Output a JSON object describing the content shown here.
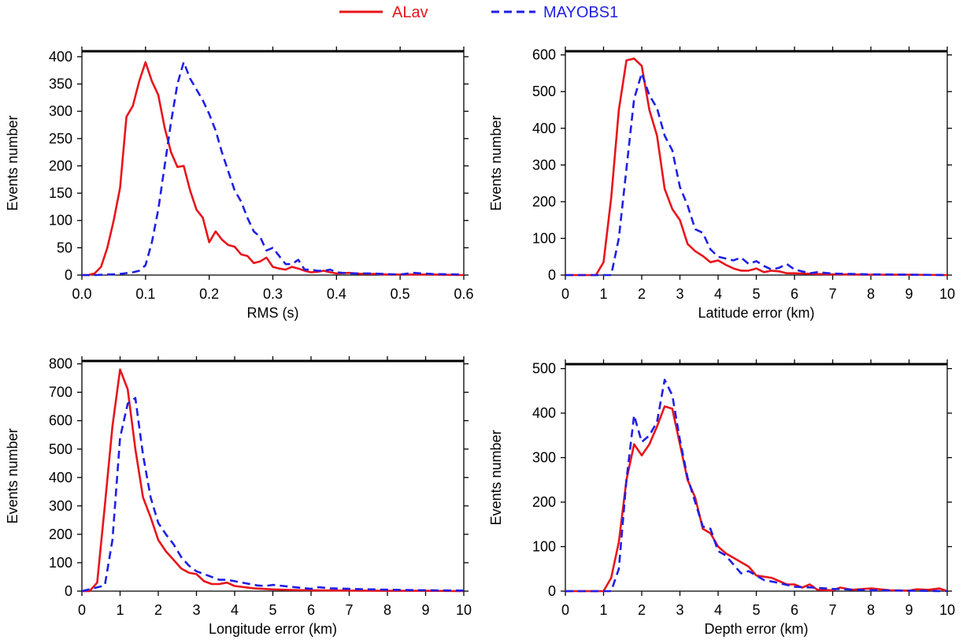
{
  "legend": {
    "position": "top-center",
    "entries": [
      {
        "label": "ALav",
        "color": "#e8141b",
        "dash": "solid"
      },
      {
        "label": "MAYOBS1",
        "color": "#1f1fe6",
        "dash": "dashed"
      }
    ]
  },
  "chart_data": [
    {
      "type": "line",
      "xlabel": "RMS (s)",
      "ylabel": "Events number",
      "xlim": [
        0,
        0.6
      ],
      "ylim": [
        0,
        410
      ],
      "xticks": [
        0,
        0.1,
        0.2,
        0.3,
        0.4,
        0.5,
        0.6
      ],
      "xtick_labels": [
        "0.0",
        "0.1",
        "0.2",
        "0.3",
        "0.4",
        "0.5",
        "0.6"
      ],
      "yticks": [
        0,
        50,
        100,
        150,
        200,
        250,
        300,
        350,
        400
      ],
      "ytick_labels": [
        "0",
        "50",
        "100",
        "150",
        "200",
        "250",
        "300",
        "350",
        "400"
      ],
      "grid": false,
      "series": [
        {
          "name": "ALav",
          "x": [
            0,
            0.01,
            0.02,
            0.03,
            0.04,
            0.05,
            0.06,
            0.07,
            0.08,
            0.09,
            0.1,
            0.11,
            0.12,
            0.13,
            0.14,
            0.15,
            0.16,
            0.17,
            0.18,
            0.19,
            0.2,
            0.21,
            0.22,
            0.23,
            0.24,
            0.25,
            0.26,
            0.27,
            0.28,
            0.29,
            0.3,
            0.31,
            0.32,
            0.33,
            0.34,
            0.35,
            0.36,
            0.37,
            0.38,
            0.39,
            0.4,
            0.42,
            0.44,
            0.46,
            0.48,
            0.5,
            0.55,
            0.6
          ],
          "y": [
            0,
            0,
            3,
            15,
            50,
            100,
            160,
            290,
            310,
            355,
            390,
            355,
            330,
            270,
            225,
            198,
            200,
            155,
            120,
            105,
            60,
            80,
            65,
            55,
            52,
            38,
            35,
            22,
            25,
            32,
            15,
            12,
            10,
            15,
            12,
            8,
            5,
            6,
            8,
            5,
            3,
            4,
            2,
            2,
            1,
            1,
            1,
            0
          ]
        },
        {
          "name": "MAYOBS1",
          "x": [
            0,
            0.02,
            0.04,
            0.06,
            0.08,
            0.09,
            0.1,
            0.11,
            0.12,
            0.13,
            0.14,
            0.15,
            0.16,
            0.17,
            0.18,
            0.19,
            0.2,
            0.21,
            0.22,
            0.23,
            0.24,
            0.25,
            0.26,
            0.27,
            0.28,
            0.29,
            0.3,
            0.31,
            0.32,
            0.33,
            0.34,
            0.35,
            0.36,
            0.37,
            0.38,
            0.39,
            0.4,
            0.42,
            0.45,
            0.5,
            0.52,
            0.55,
            0.6
          ],
          "y": [
            0,
            0,
            1,
            2,
            5,
            8,
            18,
            60,
            120,
            200,
            280,
            350,
            390,
            360,
            340,
            320,
            295,
            265,
            225,
            190,
            155,
            135,
            105,
            80,
            70,
            45,
            50,
            35,
            20,
            20,
            28,
            10,
            10,
            8,
            8,
            10,
            5,
            3,
            3,
            1,
            4,
            2,
            1
          ]
        }
      ]
    },
    {
      "type": "line",
      "xlabel": "Latitude error (km)",
      "ylabel": "Events number",
      "xlim": [
        0,
        10
      ],
      "ylim": [
        0,
        610
      ],
      "xticks": [
        0,
        1,
        2,
        3,
        4,
        5,
        6,
        7,
        8,
        9,
        10
      ],
      "xtick_labels": [
        "0",
        "1",
        "2",
        "3",
        "4",
        "5",
        "6",
        "7",
        "8",
        "9",
        "10"
      ],
      "yticks": [
        0,
        100,
        200,
        300,
        400,
        500,
        600
      ],
      "ytick_labels": [
        "0",
        "100",
        "200",
        "300",
        "400",
        "500",
        "600"
      ],
      "grid": false,
      "series": [
        {
          "name": "ALav",
          "x": [
            0,
            0.8,
            1.0,
            1.2,
            1.4,
            1.6,
            1.8,
            2.0,
            2.2,
            2.4,
            2.6,
            2.8,
            3.0,
            3.2,
            3.4,
            3.6,
            3.8,
            4.0,
            4.2,
            4.4,
            4.6,
            4.8,
            5.0,
            5.2,
            5.4,
            5.6,
            5.8,
            6.0,
            6.5,
            7.0,
            8.0,
            9.0,
            10.0
          ],
          "y": [
            0,
            0,
            35,
            210,
            450,
            585,
            590,
            570,
            450,
            380,
            235,
            180,
            150,
            85,
            65,
            52,
            35,
            40,
            28,
            18,
            12,
            12,
            18,
            8,
            12,
            10,
            5,
            5,
            3,
            2,
            1,
            1,
            0
          ]
        },
        {
          "name": "MAYOBS1",
          "x": [
            0,
            1.2,
            1.4,
            1.6,
            1.8,
            2.0,
            2.2,
            2.4,
            2.6,
            2.8,
            3.0,
            3.2,
            3.4,
            3.6,
            3.8,
            4.0,
            4.2,
            4.4,
            4.6,
            4.8,
            5.0,
            5.2,
            5.4,
            5.6,
            5.8,
            6.0,
            6.2,
            6.4,
            6.6,
            7.0,
            7.5,
            8.0,
            9.0,
            10.0
          ],
          "y": [
            0,
            0,
            100,
            290,
            480,
            550,
            490,
            455,
            380,
            340,
            240,
            190,
            125,
            115,
            70,
            50,
            45,
            40,
            48,
            30,
            38,
            25,
            15,
            20,
            30,
            15,
            10,
            5,
            8,
            4,
            3,
            2,
            1,
            0
          ]
        }
      ]
    },
    {
      "type": "line",
      "xlabel": "Longitude error (km)",
      "ylabel": "Events number",
      "xlim": [
        0,
        10
      ],
      "ylim": [
        0,
        810
      ],
      "xticks": [
        0,
        1,
        2,
        3,
        4,
        5,
        6,
        7,
        8,
        9,
        10
      ],
      "xtick_labels": [
        "0",
        "1",
        "2",
        "3",
        "4",
        "5",
        "6",
        "7",
        "8",
        "9",
        "10"
      ],
      "yticks": [
        0,
        100,
        200,
        300,
        400,
        500,
        600,
        700,
        800
      ],
      "ytick_labels": [
        "0",
        "100",
        "200",
        "300",
        "400",
        "500",
        "600",
        "700",
        "800"
      ],
      "grid": false,
      "series": [
        {
          "name": "ALav",
          "x": [
            0,
            0.2,
            0.4,
            0.6,
            0.8,
            1.0,
            1.2,
            1.4,
            1.6,
            1.8,
            2.0,
            2.2,
            2.4,
            2.6,
            2.8,
            3.0,
            3.2,
            3.4,
            3.6,
            3.8,
            4.0,
            4.5,
            5.0,
            5.5,
            6.0,
            7.0,
            8.0,
            9.0,
            10.0
          ],
          "y": [
            0,
            0,
            30,
            300,
            580,
            780,
            710,
            500,
            330,
            260,
            180,
            140,
            110,
            80,
            65,
            60,
            35,
            25,
            25,
            30,
            18,
            10,
            6,
            4,
            3,
            2,
            1,
            1,
            0
          ]
        },
        {
          "name": "MAYOBS1",
          "x": [
            0,
            0.6,
            0.8,
            1.0,
            1.2,
            1.4,
            1.6,
            1.8,
            2.0,
            2.2,
            2.4,
            2.6,
            2.8,
            3.0,
            3.2,
            3.4,
            3.6,
            3.8,
            4.0,
            4.2,
            4.4,
            4.6,
            4.8,
            5.0,
            5.5,
            6.0,
            6.2,
            6.5,
            7.0,
            8.0,
            9.0,
            10.0
          ],
          "y": [
            0,
            20,
            180,
            540,
            660,
            680,
            480,
            330,
            240,
            200,
            165,
            120,
            90,
            70,
            60,
            50,
            40,
            40,
            35,
            30,
            25,
            20,
            18,
            22,
            15,
            8,
            14,
            10,
            8,
            5,
            3,
            2
          ]
        }
      ]
    },
    {
      "type": "line",
      "xlabel": "Depth error (km)",
      "ylabel": "Events number",
      "xlim": [
        0,
        10
      ],
      "ylim": [
        0,
        510
      ],
      "xticks": [
        0,
        1,
        2,
        3,
        4,
        5,
        6,
        7,
        8,
        9,
        10
      ],
      "xtick_labels": [
        "0",
        "1",
        "2",
        "3",
        "4",
        "5",
        "6",
        "7",
        "8",
        "9",
        "10"
      ],
      "yticks": [
        0,
        100,
        200,
        300,
        400,
        500
      ],
      "ytick_labels": [
        "0",
        "100",
        "200",
        "300",
        "400",
        "500"
      ],
      "grid": false,
      "series": [
        {
          "name": "ALav",
          "x": [
            0,
            1.0,
            1.2,
            1.4,
            1.6,
            1.8,
            2.0,
            2.2,
            2.4,
            2.6,
            2.8,
            3.0,
            3.2,
            3.4,
            3.6,
            3.8,
            4.0,
            4.2,
            4.4,
            4.6,
            4.8,
            5.0,
            5.4,
            5.8,
            6.0,
            6.2,
            6.4,
            6.6,
            7.0,
            7.2,
            7.5,
            8.0,
            8.5,
            9.0,
            9.2,
            9.5,
            9.8,
            10.0
          ],
          "y": [
            0,
            0,
            30,
            110,
            250,
            330,
            305,
            330,
            370,
            415,
            410,
            330,
            250,
            210,
            140,
            130,
            100,
            85,
            75,
            65,
            55,
            35,
            30,
            15,
            15,
            8,
            15,
            3,
            2,
            8,
            3,
            6,
            2,
            1,
            4,
            3,
            6,
            0
          ]
        },
        {
          "name": "MAYOBS1",
          "x": [
            0,
            1.2,
            1.4,
            1.6,
            1.8,
            2.0,
            2.2,
            2.4,
            2.6,
            2.8,
            3.0,
            3.2,
            3.4,
            3.6,
            3.8,
            4.0,
            4.2,
            4.4,
            4.6,
            4.8,
            5.0,
            5.2,
            5.5,
            6.0,
            6.5,
            7.0,
            8.0,
            9.0,
            10.0
          ],
          "y": [
            0,
            0,
            50,
            250,
            395,
            335,
            350,
            380,
            475,
            440,
            340,
            255,
            200,
            145,
            140,
            90,
            80,
            60,
            40,
            45,
            35,
            25,
            20,
            10,
            8,
            5,
            2,
            1,
            0
          ]
        }
      ]
    }
  ]
}
